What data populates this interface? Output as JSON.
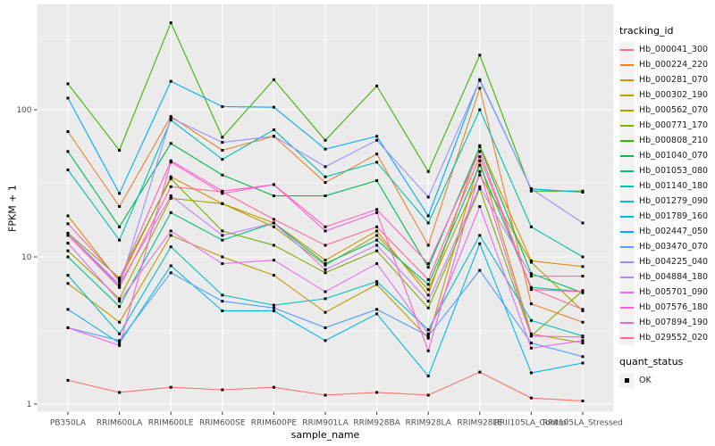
{
  "chart_data": {
    "type": "line",
    "title": "",
    "xlabel": "sample_name",
    "ylabel": "FPKM + 1",
    "y_scale": "log10",
    "y_ticks": [
      1,
      10,
      100
    ],
    "y_minor_ticks": [
      3.162,
      31.62,
      316.2
    ],
    "ylim": [
      0.89,
      520
    ],
    "grid": true,
    "panel_bg": "#EBEBEB",
    "grid_color": "#FFFFFF",
    "axis_text_color": "#4D4D4D",
    "tick_color": "#333333",
    "point_color": "#000000",
    "legend_title": "tracking_id",
    "legend_position": "right",
    "categories": [
      "PB350LA",
      "RRIM600LA",
      "RRIM600LE",
      "RRIM600SE",
      "RRIM600PE",
      "RRIM901LA",
      "RRIM928BA",
      "RRIM928LA",
      "RRIM928LE",
      "RRII105LA_Control",
      "RRII105LA_Stressed"
    ],
    "series": [
      {
        "name": "Hb_000041_300",
        "color": "#F8766D",
        "values": [
          1.45,
          1.2,
          1.3,
          1.25,
          1.3,
          1.15,
          1.2,
          1.15,
          1.65,
          1.1,
          1.05
        ]
      },
      {
        "name": "Hb_000224_220",
        "color": "#EA8331",
        "values": [
          71,
          22,
          90,
          53,
          66,
          32,
          50,
          12,
          140,
          4.8,
          3.6
        ]
      },
      {
        "name": "Hb_000281_070",
        "color": "#D89000",
        "values": [
          19,
          6.8,
          35,
          23,
          17,
          9.5,
          15,
          5.5,
          57,
          9.4,
          8.6
        ]
      },
      {
        "name": "Hb_000302_190",
        "color": "#C09B00",
        "values": [
          6.6,
          3.6,
          14,
          10,
          7.5,
          4.2,
          6.5,
          2.8,
          45,
          3,
          2.6
        ]
      },
      {
        "name": "Hb_000562_070",
        "color": "#A3A500",
        "values": [
          11,
          5.2,
          25,
          23,
          16,
          8.8,
          14,
          6,
          36,
          9.2,
          4.3
        ]
      },
      {
        "name": "Hb_000771_170",
        "color": "#7CAE00",
        "values": [
          14.5,
          7.2,
          34,
          15,
          12,
          7.8,
          11,
          4.5,
          29,
          2.9,
          5.9
        ]
      },
      {
        "name": "Hb_000808_210",
        "color": "#39B600",
        "values": [
          150,
          53,
          390,
          65,
          160,
          62,
          145,
          38,
          235,
          28,
          28
        ]
      },
      {
        "name": "Hb_001040_070",
        "color": "#00BB4E",
        "values": [
          52,
          16,
          59,
          36,
          26,
          26,
          33,
          8.5,
          56,
          7.7,
          5.7
        ]
      },
      {
        "name": "Hb_001053_080",
        "color": "#00BF7D",
        "values": [
          10,
          4.6,
          20,
          13,
          17,
          9,
          13,
          6.5,
          42,
          6.2,
          5.8
        ]
      },
      {
        "name": "Hb_001140_180",
        "color": "#00C0AF",
        "values": [
          39,
          13,
          85,
          46,
          73,
          35,
          44,
          17,
          100,
          16,
          10
        ]
      },
      {
        "name": "Hb_001279_090",
        "color": "#00BFC4",
        "values": [
          7.5,
          3,
          11.7,
          5.5,
          4.7,
          5.2,
          6.8,
          3.2,
          14,
          3.7,
          2.9
        ]
      },
      {
        "name": "Hb_001789_160",
        "color": "#00B8E7",
        "values": [
          4.4,
          2.6,
          8.7,
          4.3,
          4.3,
          2.7,
          4.1,
          1.55,
          12.3,
          1.63,
          1.9
        ]
      },
      {
        "name": "Hb_002447_050",
        "color": "#00ACFC",
        "values": [
          120,
          27,
          156,
          105,
          104,
          54,
          66,
          19,
          160,
          29,
          27.5
        ]
      },
      {
        "name": "Hb_003470_070",
        "color": "#529EFF",
        "values": [
          3.3,
          2.7,
          7.8,
          5,
          4.5,
          3.3,
          4.4,
          2.9,
          8.1,
          2.6,
          2.1
        ]
      },
      {
        "name": "Hb_004225_040",
        "color": "#9590FF",
        "values": [
          14.4,
          6.3,
          88,
          60,
          66,
          41,
          62,
          25.5,
          158,
          29,
          17
        ]
      },
      {
        "name": "Hb_004884_180",
        "color": "#C77CFF",
        "values": [
          14.4,
          6.5,
          26,
          14,
          17,
          8.2,
          12,
          5,
          30,
          7.4,
          7.4
        ]
      },
      {
        "name": "Hb_005701_090",
        "color": "#E76BF3",
        "values": [
          12.4,
          5,
          15,
          9,
          9.5,
          5.8,
          9,
          3,
          22,
          2.4,
          2.7
        ]
      },
      {
        "name": "Hb_007576_180",
        "color": "#FA62DB",
        "values": [
          3.3,
          2.5,
          44,
          27,
          31,
          15,
          20,
          2.3,
          38,
          2.9,
          2.85
        ]
      },
      {
        "name": "Hb_007894_190",
        "color": "#FF61C3",
        "values": [
          16.8,
          7,
          45,
          28,
          31,
          16,
          21,
          9,
          52,
          6,
          5.8
        ]
      },
      {
        "name": "Hb_029552_020",
        "color": "#FF6A98",
        "values": [
          14,
          6.2,
          30,
          27.7,
          18,
          12,
          16,
          7,
          48,
          6.1,
          4.4
        ]
      }
    ],
    "quant_legend": {
      "title": "quant_status",
      "items": [
        {
          "label": "OK",
          "marker": "black-square"
        }
      ]
    }
  }
}
